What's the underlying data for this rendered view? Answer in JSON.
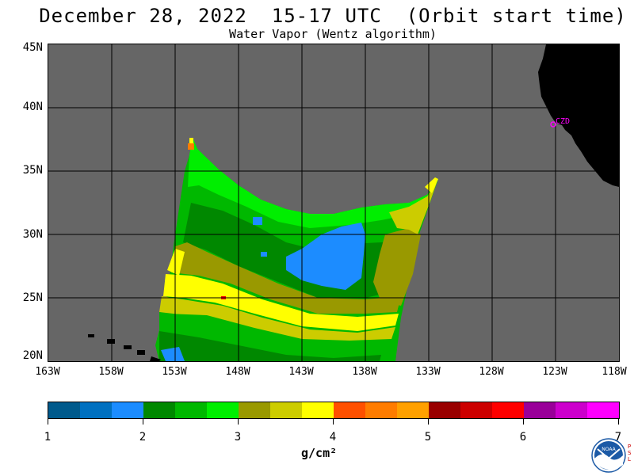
{
  "header": {
    "title": "December 28, 2022  15-17 UTC  (Orbit start time)",
    "subtitle": "Water Vapor (Wentz algorithm)"
  },
  "map": {
    "lat_labels": [
      "45N",
      "40N",
      "35N",
      "30N",
      "25N",
      "20N"
    ],
    "lon_labels": [
      "163W",
      "158W",
      "153W",
      "148W",
      "143W",
      "138W",
      "133W",
      "128W",
      "123W",
      "118W"
    ],
    "station_label": "CZD",
    "ocean_color": "#666666",
    "land_color": "#000000",
    "station_color": "#ff00ff"
  },
  "colorbar": {
    "labels": [
      "1",
      "2",
      "3",
      "4",
      "5",
      "6",
      "7"
    ],
    "unit": "g/cm²",
    "colors": [
      "#005a8c",
      "#0070c0",
      "#1c8cff",
      "#008800",
      "#00b800",
      "#00ee00",
      "#999900",
      "#cccc00",
      "#ffff00",
      "#ff5000",
      "#ff7c00",
      "#ffa000",
      "#990000",
      "#cc0000",
      "#ff0000",
      "#990099",
      "#cc00cc",
      "#ff00ff"
    ]
  },
  "logo": {
    "text": "NOAA",
    "side_text": "PSL"
  }
}
